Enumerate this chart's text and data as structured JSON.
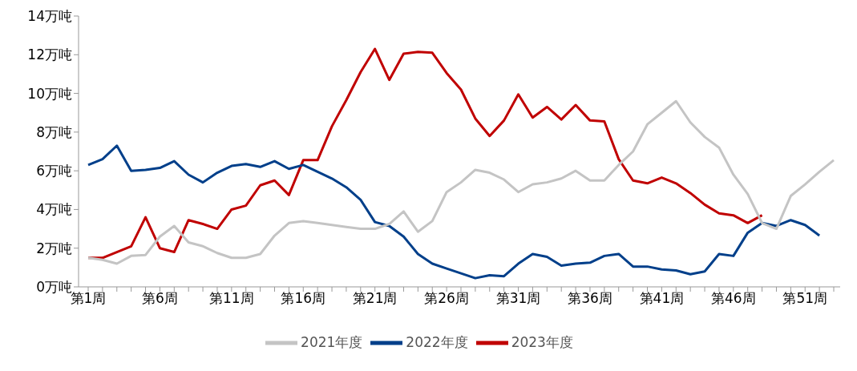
{
  "chart_data": {
    "type": "line",
    "categories": [
      "第1周",
      null,
      null,
      null,
      null,
      "第6周",
      null,
      null,
      null,
      null,
      "第11周",
      null,
      null,
      null,
      null,
      "第16周",
      null,
      null,
      null,
      null,
      "第21周",
      null,
      null,
      null,
      null,
      "第26周",
      null,
      null,
      null,
      null,
      "第31周",
      null,
      null,
      null,
      null,
      "第36周",
      null,
      null,
      null,
      null,
      "第41周",
      null,
      null,
      null,
      null,
      "第46周",
      null,
      null,
      null,
      null,
      "第51周",
      null,
      null
    ],
    "series": [
      {
        "name": "2023年度",
        "color": "#c00000",
        "values": [
          1.5,
          1.5,
          1.8,
          2.1,
          3.6,
          2.0,
          1.8,
          3.45,
          3.25,
          3.0,
          4.0,
          4.2,
          5.25,
          5.5,
          4.75,
          6.55,
          6.55,
          8.3,
          9.65,
          11.1,
          12.3,
          10.7,
          12.05,
          12.15,
          12.1,
          11.05,
          10.2,
          8.7,
          7.8,
          8.6,
          9.95,
          8.75,
          9.3,
          8.65,
          9.4,
          8.6,
          8.55,
          6.6,
          5.5,
          5.35,
          5.65,
          5.35,
          4.85,
          4.25,
          3.8,
          3.7,
          3.3,
          3.7,
          null,
          null,
          null,
          null,
          null
        ]
      },
      {
        "name": "2022年度",
        "color": "#003f8a",
        "values": [
          6.3,
          6.6,
          7.3,
          6.0,
          6.05,
          6.15,
          6.5,
          5.8,
          5.4,
          5.9,
          6.25,
          6.35,
          6.2,
          6.5,
          6.1,
          6.3,
          5.95,
          5.6,
          5.15,
          4.5,
          3.35,
          3.15,
          2.6,
          1.7,
          1.2,
          0.95,
          0.7,
          0.45,
          0.6,
          0.55,
          1.2,
          1.7,
          1.55,
          1.1,
          1.2,
          1.25,
          1.6,
          1.7,
          1.05,
          1.05,
          0.9,
          0.85,
          0.65,
          0.8,
          1.7,
          1.6,
          2.8,
          3.3,
          3.15,
          3.45,
          3.2,
          2.65,
          null
        ]
      },
      {
        "name": "2021年度",
        "color": "#c4c4c4",
        "values": [
          1.5,
          1.4,
          1.2,
          1.6,
          1.65,
          2.6,
          3.15,
          2.3,
          2.1,
          1.75,
          1.5,
          1.5,
          1.7,
          2.65,
          3.3,
          3.4,
          3.3,
          3.2,
          3.1,
          3.0,
          3.0,
          3.25,
          3.9,
          2.85,
          3.4,
          4.9,
          5.4,
          6.05,
          5.9,
          5.55,
          4.9,
          5.3,
          5.4,
          5.6,
          6.0,
          5.5,
          5.5,
          6.3,
          7.0,
          8.4,
          9.0,
          9.6,
          8.5,
          7.75,
          7.2,
          5.8,
          4.8,
          3.3,
          3.0,
          4.7,
          5.3,
          5.95,
          6.55
        ]
      }
    ],
    "ylim": [
      0,
      14
    ],
    "yticks": [
      {
        "value": 0,
        "label": "0万吨"
      },
      {
        "value": 2,
        "label": "2万吨"
      },
      {
        "value": 4,
        "label": "4万吨"
      },
      {
        "value": 6,
        "label": "6万吨"
      },
      {
        "value": 8,
        "label": "8万吨"
      },
      {
        "value": 10,
        "label": "10万吨"
      },
      {
        "value": 12,
        "label": "12万吨"
      },
      {
        "value": 14,
        "label": "14万吨"
      }
    ],
    "legend": "bottom",
    "marker": "none",
    "line_style": "solid"
  }
}
